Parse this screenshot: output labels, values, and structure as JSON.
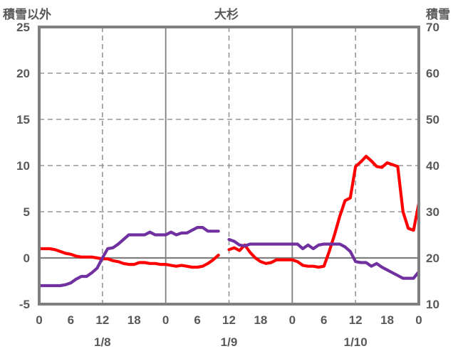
{
  "header": {
    "left_axis_title": "積雪以外",
    "chart_title": "大杉",
    "right_axis_title": "積雪"
  },
  "colors": {
    "series_other": "#FF0000",
    "series_snow": "#7030A0",
    "border": "#7F7F7F",
    "gridline": "#969696",
    "text": "#595959",
    "background": "#FFFFFF"
  },
  "chart_data": {
    "type": "line",
    "title": "大杉",
    "x_axis": {
      "unit": "hours",
      "range_hours": [
        0,
        72
      ],
      "tick_step_hours": 6,
      "hour_tick_labels": [
        "0",
        "6",
        "12",
        "18",
        "0",
        "6",
        "12",
        "18",
        "0",
        "6",
        "12",
        "18",
        "0"
      ],
      "day_labels": [
        {
          "label": "1/8",
          "center_hour": 12
        },
        {
          "label": "1/9",
          "center_hour": 36
        },
        {
          "label": "1/10",
          "center_hour": 60
        }
      ]
    },
    "y_left": {
      "title": "積雪以外",
      "range": [
        -5,
        25
      ],
      "ticks": [
        25,
        20,
        15,
        10,
        5,
        0,
        -5
      ]
    },
    "y_right": {
      "title": "積雪",
      "range": [
        10,
        70
      ],
      "ticks": [
        70,
        60,
        50,
        40,
        30,
        20,
        10
      ]
    },
    "grid": {
      "h_dashed_left_values": [
        20,
        15,
        10,
        5
      ],
      "h_solid_left_values": [
        0
      ],
      "v_solid_hours": [
        24,
        48
      ],
      "v_dashed_hours": [
        12,
        36,
        60
      ],
      "legend": "none"
    },
    "gap_note": "both series have missing data at hour 35 (between 1/9 10:00-12:00 area)",
    "series": [
      {
        "name": "積雪以外",
        "axis": "left",
        "color": "#FF0000",
        "values": [
          1,
          1,
          1,
          0.9,
          0.7,
          0.5,
          0.4,
          0.2,
          0.1,
          0.1,
          0.1,
          0,
          -0.1,
          -0.1,
          -0.3,
          -0.4,
          -0.6,
          -0.7,
          -0.7,
          -0.5,
          -0.5,
          -0.6,
          -0.6,
          -0.7,
          -0.7,
          -0.8,
          -0.9,
          -0.8,
          -0.9,
          -1,
          -1,
          -0.9,
          -0.6,
          -0.2,
          0.3,
          null,
          0.9,
          1.1,
          0.8,
          1.4,
          0.6,
          0,
          -0.4,
          -0.6,
          -0.5,
          -0.2,
          -0.2,
          -0.2,
          -0.2,
          -0.4,
          -0.8,
          -0.9,
          -0.9,
          -1,
          -0.9,
          0.7,
          2.5,
          4.5,
          6.2,
          6.5,
          9.9,
          10.4,
          11,
          10.5,
          9.9,
          9.8,
          10.3,
          10.1,
          9.9,
          5,
          3.2,
          3,
          5.9
        ]
      },
      {
        "name": "積雪",
        "axis": "right",
        "color": "#7030A0",
        "values": [
          14,
          14,
          14,
          14,
          14,
          14.2,
          14.6,
          15.4,
          16,
          16,
          16.8,
          17.8,
          20,
          22,
          22.2,
          23,
          24,
          25,
          25,
          25,
          25,
          25.6,
          25,
          25,
          25,
          25.6,
          25,
          25.4,
          25.4,
          26,
          26.6,
          26.6,
          25.8,
          25.8,
          25.8,
          null,
          24,
          23.6,
          22.8,
          22.6,
          23,
          23,
          23,
          23,
          23,
          23,
          23,
          23,
          23,
          23,
          22,
          22.8,
          22,
          22.8,
          23,
          23,
          23,
          23,
          22.4,
          21.4,
          19.2,
          19,
          19,
          18.2,
          18.8,
          18,
          17.4,
          16.8,
          16.2,
          15.6,
          15.6,
          15.6,
          17
        ]
      }
    ]
  }
}
